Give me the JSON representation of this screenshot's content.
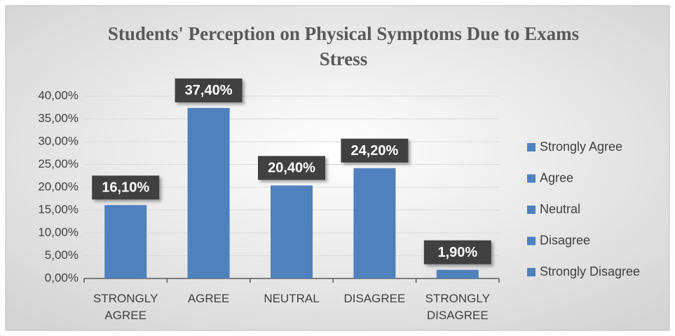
{
  "chart_data": {
    "type": "bar",
    "title": "Students' Perception on Physical Symptoms Due to Exams Stress",
    "categories": [
      "STRONGLY AGREE",
      "AGREE",
      "NEUTRAL",
      "DISAGREE",
      "STRONGLY DISAGREE"
    ],
    "values": [
      16.1,
      37.4,
      20.4,
      24.2,
      1.9
    ],
    "value_labels": [
      "16,10%",
      "37,40%",
      "20,40%",
      "24,20%",
      "1,90%"
    ],
    "legend": [
      "Strongly Agree",
      "Agree",
      "Neutral",
      "Disagree",
      "Strongly Disagree"
    ],
    "color": "#4f81bd",
    "ylim": [
      0,
      40
    ],
    "yticks": [
      {
        "value": 0,
        "label": "0,00%"
      },
      {
        "value": 5,
        "label": "5,00%"
      },
      {
        "value": 10,
        "label": "10,00%"
      },
      {
        "value": 15,
        "label": "15,00%"
      },
      {
        "value": 20,
        "label": "20,00%"
      },
      {
        "value": 25,
        "label": "25,00%"
      },
      {
        "value": 30,
        "label": "30,00%"
      },
      {
        "value": 35,
        "label": "35,00%"
      },
      {
        "value": 40,
        "label": "40,00%"
      }
    ],
    "grid": true
  }
}
